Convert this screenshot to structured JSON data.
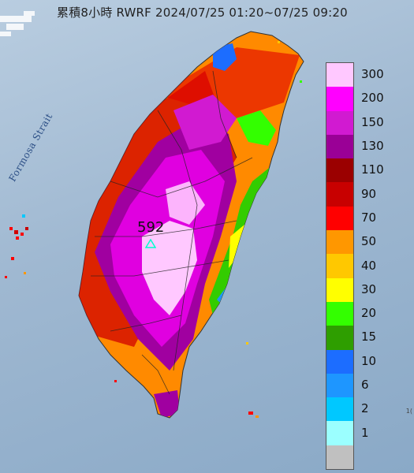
{
  "map": {
    "title": "累積8小時 RWRF 2024/07/25 01:20~07/25 09:20",
    "sea_label": "Formosa Strait",
    "peak_value": "592",
    "corner_text": "1("
  },
  "legend": {
    "entries": [
      {
        "label": "300",
        "color": "#ffc8ff"
      },
      {
        "label": "200",
        "color": "#ff00ff"
      },
      {
        "label": "150",
        "color": "#d11ad1"
      },
      {
        "label": "130",
        "color": "#9a0096"
      },
      {
        "label": "110",
        "color": "#9b0000"
      },
      {
        "label": "90",
        "color": "#c80000"
      },
      {
        "label": "70",
        "color": "#ff0000"
      },
      {
        "label": "50",
        "color": "#ff9700"
      },
      {
        "label": "40",
        "color": "#ffc800"
      },
      {
        "label": "30",
        "color": "#ffff00"
      },
      {
        "label": "20",
        "color": "#33ff00"
      },
      {
        "label": "15",
        "color": "#2e9e00"
      },
      {
        "label": "10",
        "color": "#1c6dff"
      },
      {
        "label": "6",
        "color": "#1e96ff"
      },
      {
        "label": "2",
        "color": "#00c8ff"
      },
      {
        "label": "1",
        "color": "#9bffff"
      },
      {
        "label": "",
        "color": "#c0c0c0"
      }
    ]
  }
}
